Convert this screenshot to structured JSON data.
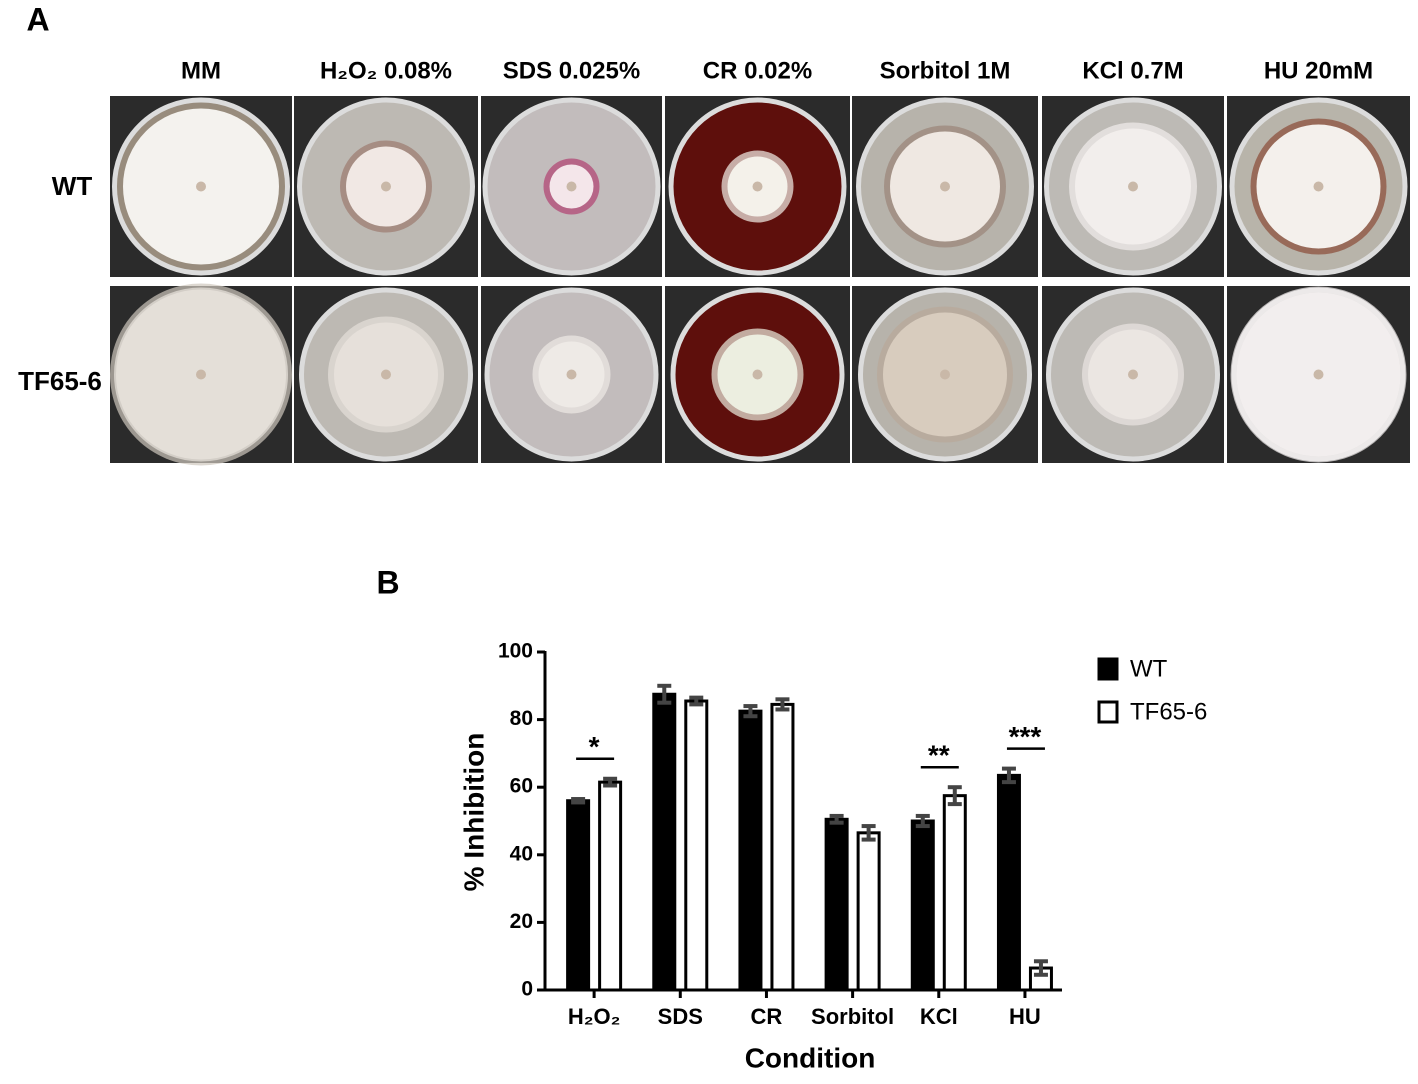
{
  "panel_a": {
    "label": "A",
    "columns": [
      "MM",
      "H₂O₂ 0.08%",
      "SDS 0.025%",
      "CR 0.02%",
      "Sorbitol 1M",
      "KCl 0.7M",
      "HU 20mM"
    ],
    "rows": [
      "WT",
      "TF65-6"
    ]
  },
  "chart_data": {
    "type": "bar",
    "panel_label": "B",
    "x_label": "Condition",
    "y_label": "% Inhibition",
    "categories": [
      "H₂O₂",
      "SDS",
      "CR",
      "Sorbitol",
      "KCl",
      "HU"
    ],
    "series": [
      {
        "name": "WT",
        "color": "#000000",
        "values": [
          56,
          87.5,
          82.5,
          50.5,
          50,
          63.5
        ],
        "errors": [
          0.5,
          2.5,
          1.5,
          1,
          1.5,
          2
        ]
      },
      {
        "name": "TF65-6",
        "color": "#ffffff",
        "values": [
          61.5,
          85.5,
          84.5,
          46.5,
          57.5,
          6.5
        ],
        "errors": [
          1,
          1,
          1.5,
          2,
          2.5,
          2
        ]
      }
    ],
    "annotations": [
      "*",
      null,
      null,
      null,
      "**",
      "***"
    ],
    "ylim": [
      0,
      100
    ],
    "yticks": [
      0,
      20,
      40,
      60,
      80,
      100
    ],
    "grid": false,
    "legend": "upper right"
  }
}
